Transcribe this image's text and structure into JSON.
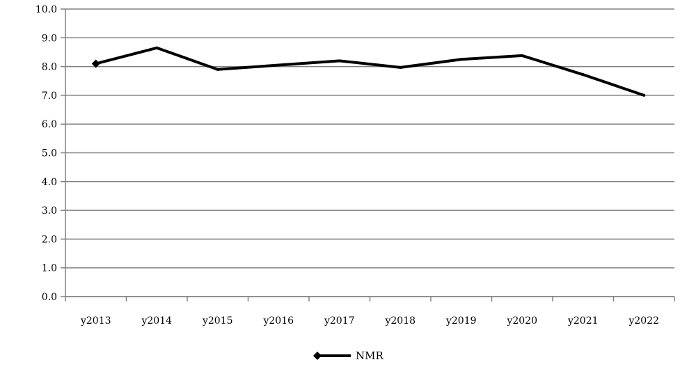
{
  "chart_data": {
    "type": "line",
    "categories": [
      "y2013",
      "y2014",
      "y2015",
      "y2016",
      "y2017",
      "y2018",
      "y2019",
      "y2020",
      "y2021",
      "y2022"
    ],
    "series": [
      {
        "name": "NMR",
        "values": [
          8.1,
          8.65,
          7.9,
          8.05,
          8.2,
          7.97,
          8.25,
          8.38,
          7.72,
          7.0
        ],
        "color": "#000000"
      }
    ],
    "ylim": [
      0,
      10
    ],
    "yticks": [
      "0.0",
      "1.0",
      "2.0",
      "3.0",
      "4.0",
      "5.0",
      "6.0",
      "7.0",
      "8.0",
      "9.0",
      "10.0"
    ],
    "grid": true,
    "legend_position": "bottom-center",
    "marker": "diamond-first-point"
  }
}
